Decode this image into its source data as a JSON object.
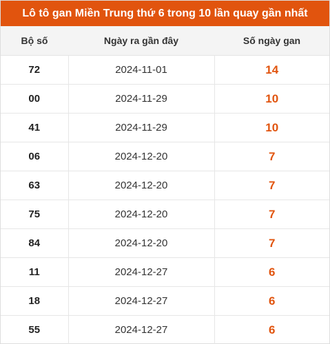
{
  "title": "Lô tô gan Miền Trung thứ 6 trong 10 lần quay gần nhất",
  "headers": {
    "col1": "Bộ số",
    "col2": "Ngày ra gần đây",
    "col3": "Số ngày gan"
  },
  "colors": {
    "accent": "#e1540e",
    "header_bg": "#f4f4f4"
  },
  "rows": [
    {
      "so": "72",
      "ngay": "2024-11-01",
      "gan": "14"
    },
    {
      "so": "00",
      "ngay": "2024-11-29",
      "gan": "10"
    },
    {
      "so": "41",
      "ngay": "2024-11-29",
      "gan": "10"
    },
    {
      "so": "06",
      "ngay": "2024-12-20",
      "gan": "7"
    },
    {
      "so": "63",
      "ngay": "2024-12-20",
      "gan": "7"
    },
    {
      "so": "75",
      "ngay": "2024-12-20",
      "gan": "7"
    },
    {
      "so": "84",
      "ngay": "2024-12-20",
      "gan": "7"
    },
    {
      "so": "11",
      "ngay": "2024-12-27",
      "gan": "6"
    },
    {
      "so": "18",
      "ngay": "2024-12-27",
      "gan": "6"
    },
    {
      "so": "55",
      "ngay": "2024-12-27",
      "gan": "6"
    }
  ]
}
